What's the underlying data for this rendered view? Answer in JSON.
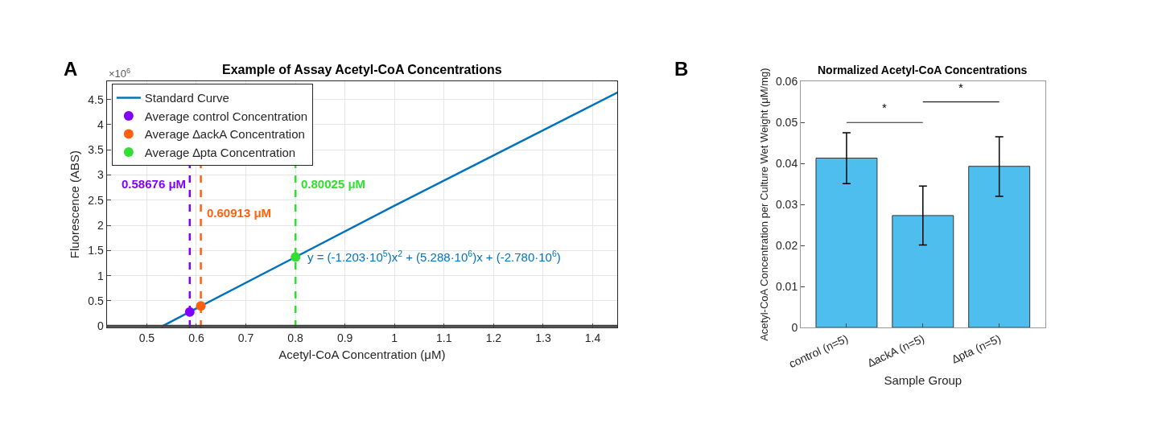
{
  "chart_data": [
    {
      "type": "line",
      "title": "Example of Assay Acetyl-CoA Concentrations",
      "xlabel": "Acetyl-CoA Concentration (μM)",
      "ylabel": "Fluorescence (ABS)",
      "xlim": [
        0.419,
        1.45
      ],
      "xticks": [
        0.5,
        0.6,
        0.7,
        0.8,
        0.9,
        1,
        1.1,
        1.2,
        1.3,
        1.4
      ],
      "ylim": [
        -0.03,
        4.86
      ],
      "yticks": [
        0,
        0.5,
        1,
        1.5,
        2,
        2.5,
        3,
        3.5,
        4,
        4.5
      ],
      "grid": true,
      "legend": "top left",
      "series": [
        {
          "name": "Standard Curve",
          "type": "line",
          "color": "#0072bd",
          "marker": "none",
          "line_style": "solid",
          "x": [
            0.53,
            0.6,
            0.8,
            1.0,
            1.2,
            1.45
          ],
          "values": [
            -0.01,
            0.35,
            1.37,
            2.39,
            3.39,
            4.64
          ]
        },
        {
          "name": "Average control Concentration",
          "type": "scatter",
          "color": "#8000ff",
          "marker": "circle",
          "x": [
            0.58676
          ],
          "values": [
            0.28
          ]
        },
        {
          "name": "Average ∆ackA Concentration",
          "type": "scatter",
          "color": "#ff6010",
          "marker": "circle",
          "x": [
            0.60913
          ],
          "values": [
            0.4
          ]
        },
        {
          "name": "Average ∆pta Concentration",
          "type": "scatter",
          "color": "#33dd33",
          "marker": "circle",
          "x": [
            0.80025
          ],
          "values": [
            1.37
          ]
        }
      ],
      "ref_lines": [
        {
          "axis": "x",
          "value": 0.58676,
          "label": "0.58676 μM",
          "color": "#8000ff",
          "line_style": "dashed"
        },
        {
          "axis": "x",
          "value": 0.60913,
          "label": "0.60913 μM",
          "color": "#ff6010",
          "line_style": "dashed"
        },
        {
          "axis": "x",
          "value": 0.80025,
          "label": "0.80025 μM",
          "color": "#33dd33",
          "line_style": "dashed"
        },
        {
          "axis": "y",
          "value": 0,
          "color": "#404040",
          "line_style": "solid"
        }
      ],
      "annotations": [
        "A",
        "×10$^{6}$",
        "y = (-1.203·10$^{5}$)x$^{2}$ + (5.288·10$^{6}$)x + (-2.780·10$^{6}$)"
      ]
    },
    {
      "type": "bar",
      "title": "Normalized Acetyl-CoA Concentrations",
      "xlabel": "Sample Group",
      "ylabel": "Acetyl-CoA Concentration per Culture Wet Weight (μM/mg)",
      "categories": [
        "control (n=5)",
        "∆ackA (n=5)",
        "∆pta (n=5)"
      ],
      "values": [
        0.0413,
        0.0273,
        0.0393
      ],
      "color": "#4dbeee",
      "errors": [
        [
          0.0351,
          0.0475
        ],
        [
          0.0201,
          0.0345
        ],
        [
          0.032,
          0.0465
        ]
      ],
      "ylim": [
        0,
        0.06
      ],
      "yticks": [
        0,
        0.01,
        0.02,
        0.03,
        0.04,
        0.05,
        0.06
      ],
      "grid": false,
      "legend": false,
      "annotations": [
        "B",
        "*",
        "*"
      ]
    }
  ]
}
